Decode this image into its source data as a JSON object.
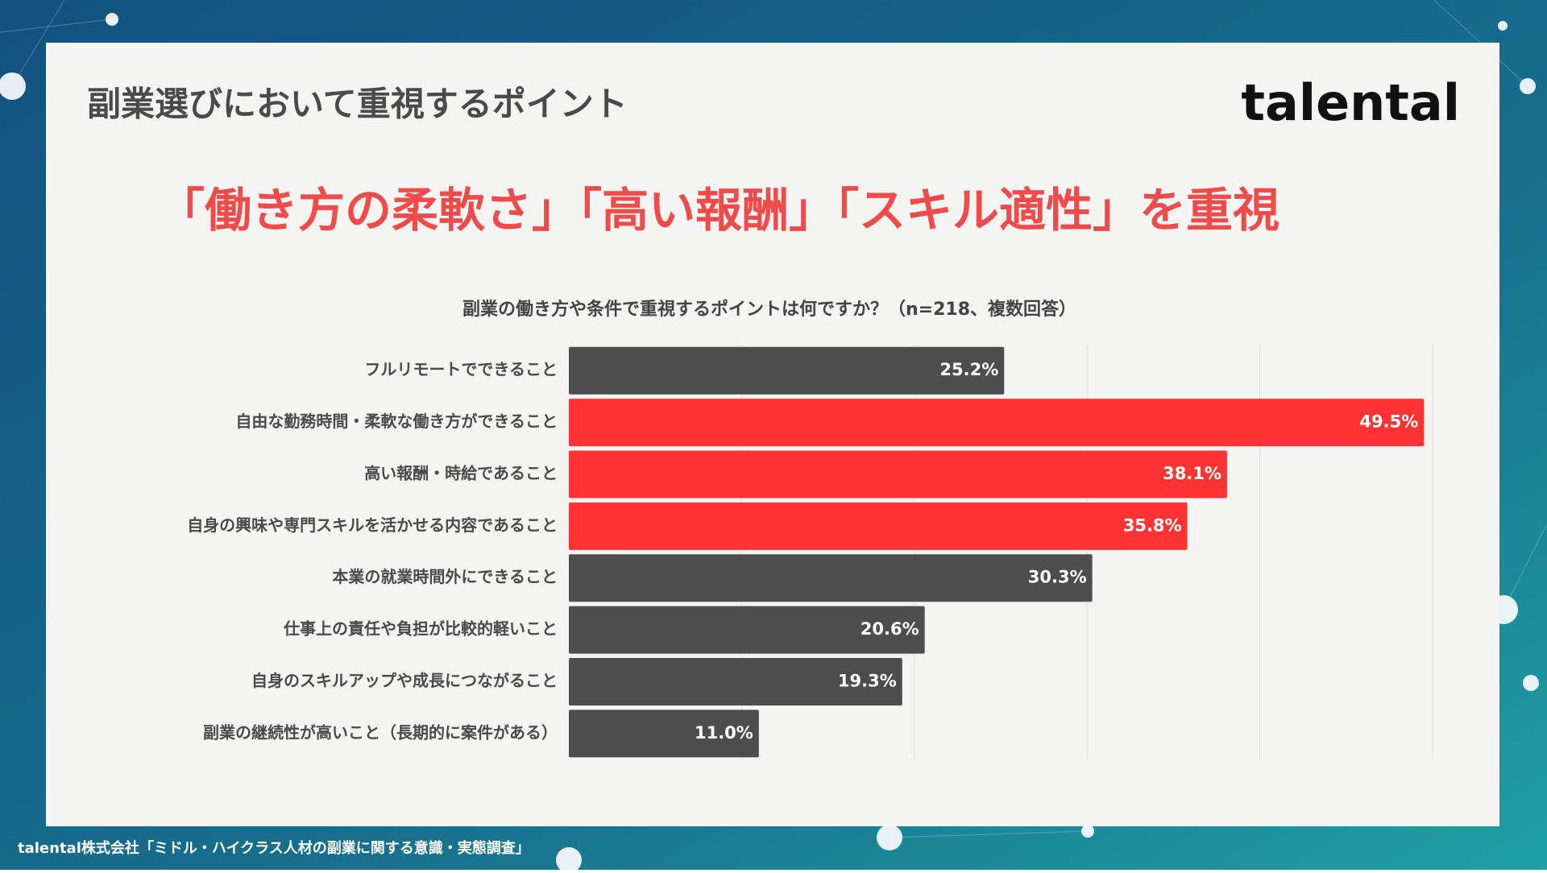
{
  "header": {
    "title": "副業選びにおいて重視するポイント",
    "logo": "talental"
  },
  "headline": "「働き方の柔軟さ」「高い報酬」「スキル適性」を重視",
  "chart_data": {
    "type": "bar",
    "orientation": "horizontal",
    "title": "副業の働き方や条件で重視するポイントは何ですか？（n=218、複数回答）",
    "categories": [
      "フルリモートでできること",
      "自由な勤務時間・柔軟な働き方ができること",
      "高い報酬・時給であること",
      "自身の興味や専門スキルを活かせる内容であること",
      "本業の就業時間外にできること",
      "仕事上の責任や負担が比較的軽いこと",
      "自身のスキルアップや成長につながること",
      "副業の継続性が高いこと（長期的に案件がある）"
    ],
    "values": [
      25.2,
      49.5,
      38.1,
      35.8,
      30.3,
      20.6,
      19.3,
      11.0
    ],
    "value_labels": [
      "25.2%",
      "49.5%",
      "38.1%",
      "35.8%",
      "30.3%",
      "20.6%",
      "19.3%",
      "11.0%"
    ],
    "colors": [
      "#4d4d4d",
      "#ff3333",
      "#ff3333",
      "#ff3333",
      "#4d4d4d",
      "#4d4d4d",
      "#4d4d4d",
      "#4d4d4d"
    ],
    "xlim": [
      0,
      50
    ],
    "xticks": [
      10,
      20,
      30,
      40,
      50
    ],
    "grid": true
  },
  "footer": "talental株式会社「ミドル・ハイクラス人材の副業に関する意識・実態調査」"
}
